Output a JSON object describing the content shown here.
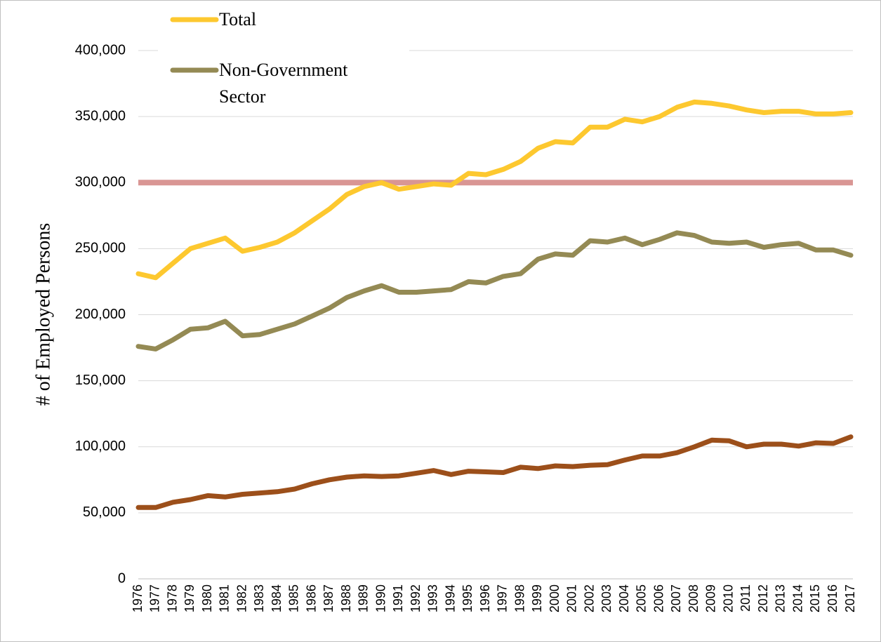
{
  "chart_data": {
    "type": "line",
    "ylabel": "# of Employed Persons",
    "categories": [
      "1976",
      "1977",
      "1978",
      "1979",
      "1980",
      "1981",
      "1982",
      "1983",
      "1984",
      "1985",
      "1986",
      "1987",
      "1988",
      "1989",
      "1990",
      "1991",
      "1992",
      "1993",
      "1994",
      "1995",
      "1996",
      "1997",
      "1998",
      "1999",
      "2000",
      "2001",
      "2002",
      "2003",
      "2004",
      "2005",
      "2006",
      "2007",
      "2008",
      "2009",
      "2010",
      "2011",
      "2012",
      "2013",
      "2014",
      "2015",
      "2016",
      "2017"
    ],
    "series": [
      {
        "name": "Total",
        "color": "#fdc82f",
        "values": [
          231000,
          228000,
          239000,
          250000,
          254000,
          258000,
          248000,
          251000,
          255000,
          262000,
          271000,
          280000,
          291000,
          297000,
          300000,
          295000,
          297000,
          299000,
          298000,
          307000,
          306000,
          310000,
          316000,
          326000,
          331000,
          330000,
          342000,
          342000,
          348000,
          346000,
          350000,
          357000,
          361000,
          360000,
          358000,
          355000,
          353000,
          354000,
          354000,
          352000,
          352000,
          353000
        ]
      },
      {
        "name": "Non-Government Sector",
        "color": "#948a54",
        "values": [
          176000,
          174000,
          181000,
          189000,
          190000,
          195000,
          184000,
          185000,
          189000,
          193000,
          199000,
          205000,
          213000,
          218000,
          222000,
          217000,
          217000,
          218000,
          219000,
          225000,
          224000,
          229000,
          231000,
          242000,
          246000,
          245000,
          256000,
          255000,
          258000,
          253000,
          257000,
          262000,
          260000,
          255000,
          254000,
          255000,
          251000,
          253000,
          254000,
          249000,
          249000,
          245000
        ]
      },
      {
        "color": "#9c4f1a",
        "values": [
          54000,
          54000,
          58000,
          60000,
          63000,
          62000,
          64000,
          65000,
          66000,
          68000,
          72000,
          75000,
          77000,
          78000,
          77500,
          78000,
          80000,
          82000,
          79000,
          81500,
          81000,
          80500,
          84500,
          83500,
          85500,
          85000,
          86000,
          86500,
          90000,
          93000,
          93000,
          95500,
          100000,
          105000,
          104500,
          100000,
          102000,
          102000,
          100500,
          103000,
          102500,
          107500
        ]
      }
    ],
    "reference_line": {
      "value": 300000,
      "color": "#d99694"
    },
    "ylim": [
      0,
      400000
    ],
    "yticks": [
      0,
      {
        "value": 50000,
        "label": "50,000"
      },
      {
        "value": 100000,
        "label": "100,000"
      },
      {
        "value": 150000,
        "label": "150,000"
      },
      {
        "value": 200000,
        "label": "200,000"
      },
      {
        "value": 250000,
        "label": "250,000"
      },
      {
        "value": 300000,
        "label": "300,000"
      },
      {
        "value": 350000,
        "label": "350,000"
      },
      {
        "value": 400000,
        "label": "400,000"
      }
    ],
    "grid": true
  }
}
